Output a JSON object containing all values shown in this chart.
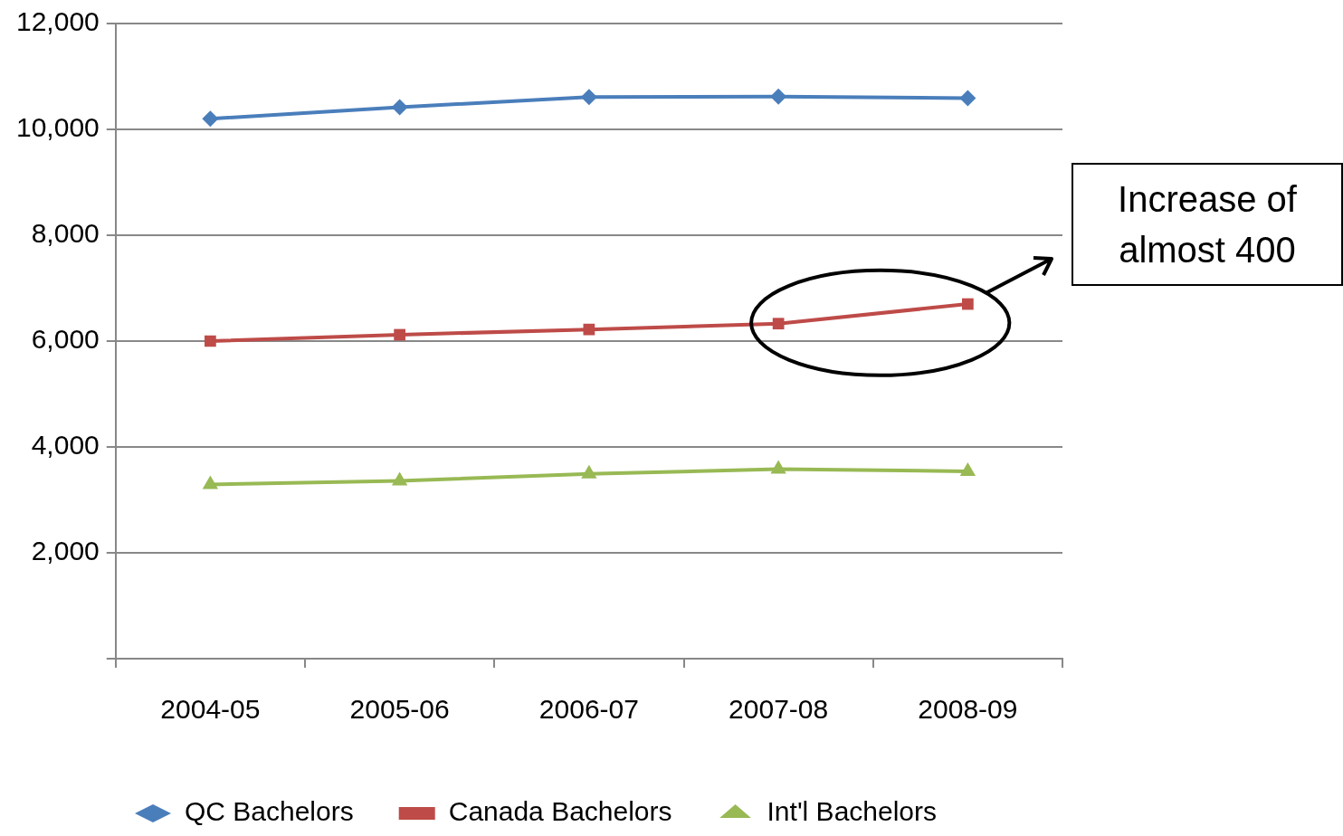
{
  "chart_data": {
    "type": "line",
    "categories": [
      "2004-05",
      "2005-06",
      "2006-07",
      "2007-08",
      "2008-09"
    ],
    "series": [
      {
        "name": "QC Bachelors",
        "color": "#4a7ebb",
        "marker": "diamond",
        "values": [
          10200,
          10420,
          10610,
          10620,
          10590
        ]
      },
      {
        "name": "Canada Bachelors",
        "color": "#be4b48",
        "marker": "square",
        "values": [
          6000,
          6120,
          6220,
          6330,
          6700
        ]
      },
      {
        "name": "Int'l Bachelors",
        "color": "#98b954",
        "marker": "triangle",
        "values": [
          3290,
          3360,
          3490,
          3580,
          3540
        ]
      }
    ],
    "ylim": [
      0,
      12000
    ],
    "yticks": [
      {
        "value": 0,
        "label": null
      },
      {
        "value": 2000,
        "label": "2,000"
      },
      {
        "value": 4000,
        "label": "4,000"
      },
      {
        "value": 6000,
        "label": "6,000"
      },
      {
        "value": 8000,
        "label": "8,000"
      },
      {
        "value": 10000,
        "label": "10,000"
      },
      {
        "value": 12000,
        "label": "12,000"
      }
    ],
    "grid": "y",
    "legend": "bottom",
    "line_style": "solid",
    "annotations": [
      "Increase of almost 400"
    ]
  }
}
